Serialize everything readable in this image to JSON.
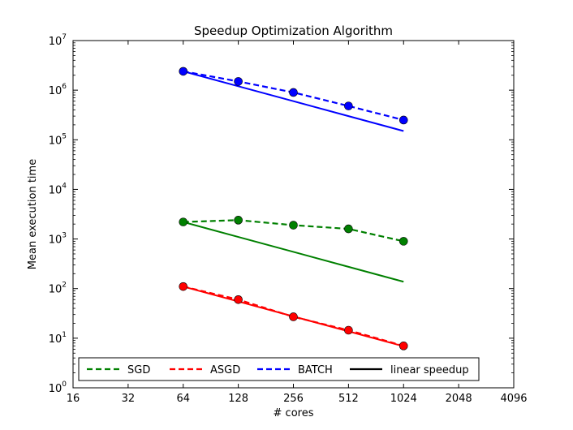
{
  "chart_data": {
    "type": "line",
    "title": "Speedup Optimization Algorithm",
    "xlabel": "# cores",
    "ylabel": "Mean execution time",
    "x_scale": "log2",
    "y_scale": "log10",
    "xlim": [
      16,
      4096
    ],
    "ylim": [
      1,
      10000000
    ],
    "x_ticks": [
      16,
      32,
      64,
      128,
      256,
      512,
      1024,
      2048,
      4096
    ],
    "x_tick_labels": [
      "16",
      "32",
      "64",
      "128",
      "256",
      "512",
      "1024",
      "2048",
      "4096"
    ],
    "y_ticks": [
      1,
      10,
      100,
      1000,
      10000,
      100000,
      1000000,
      10000000
    ],
    "y_tick_exponents": [
      "0",
      "1",
      "2",
      "3",
      "4",
      "5",
      "6",
      "7"
    ],
    "y_tick_base": "10",
    "legend_position": "bottom",
    "series": [
      {
        "name": "SGD",
        "color": "#008000",
        "x": [
          64,
          128,
          256,
          512,
          1024
        ],
        "measured": [
          2200,
          2400,
          1900,
          1600,
          900
        ],
        "linear_speedup": [
          2200,
          1100,
          550,
          275,
          137.5
        ]
      },
      {
        "name": "ASGD",
        "color": "#ff0000",
        "x": [
          64,
          128,
          256,
          512,
          1024
        ],
        "measured": [
          110,
          60,
          27,
          14.5,
          7
        ],
        "linear_speedup": [
          110,
          55,
          27.5,
          13.75,
          6.875
        ]
      },
      {
        "name": "BATCH",
        "color": "#0000ff",
        "x": [
          64,
          128,
          256,
          512,
          1024
        ],
        "measured": [
          2400000,
          1500000,
          900000,
          480000,
          250000
        ],
        "linear_speedup": [
          2400000,
          1200000,
          600000,
          300000,
          150000
        ]
      }
    ],
    "legend": [
      {
        "label": "SGD",
        "color": "#008000",
        "style": "dashed"
      },
      {
        "label": "ASGD",
        "color": "#ff0000",
        "style": "dashed"
      },
      {
        "label": "BATCH",
        "color": "#0000ff",
        "style": "dashed"
      },
      {
        "label": "linear speedup",
        "color": "#000000",
        "style": "solid"
      }
    ]
  }
}
